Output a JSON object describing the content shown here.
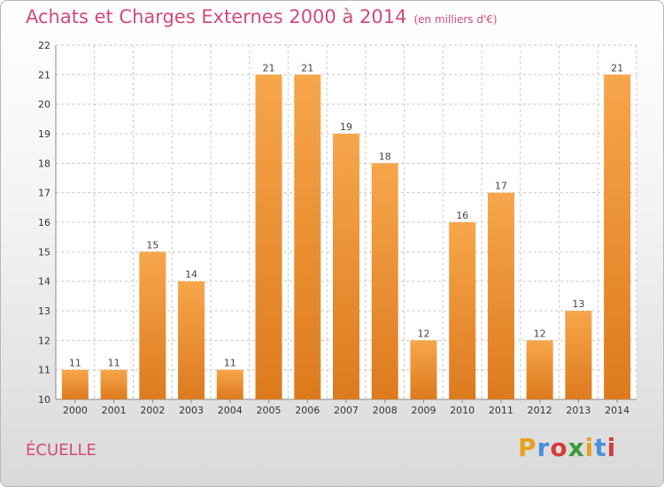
{
  "header": {
    "title": "Achats et Charges Externes 2000 à 2014",
    "unit": "(en milliers d'€)"
  },
  "commune": "ÉCUELLE",
  "logo": {
    "text": "Proxiti",
    "colors": [
      "#e8a020",
      "#4a90d9",
      "#d23c3c",
      "#3a9a3a",
      "#e8a020",
      "#4a90d9",
      "#d23c3c"
    ]
  },
  "colors": {
    "bar_top": "#f7a64b",
    "bar_bottom": "#dd7a1e",
    "grid": "#c8c8c8",
    "axis": "#888888"
  },
  "chart_data": {
    "type": "bar",
    "title": "Achats et Charges Externes 2000 à 2014",
    "xlabel": "",
    "ylabel": "",
    "categories": [
      "2000",
      "2001",
      "2002",
      "2003",
      "2004",
      "2005",
      "2006",
      "2007",
      "2008",
      "2009",
      "2010",
      "2011",
      "2012",
      "2013",
      "2014"
    ],
    "values": [
      11,
      11,
      15,
      14,
      11,
      21,
      21,
      19,
      18,
      12,
      16,
      17,
      12,
      13,
      21
    ],
    "ylim": [
      10,
      22
    ],
    "yticks": [
      "10",
      "11",
      "12",
      "13",
      "14",
      "15",
      "16",
      "17",
      "18",
      "19",
      "20",
      "21",
      "22"
    ],
    "grid": true
  }
}
